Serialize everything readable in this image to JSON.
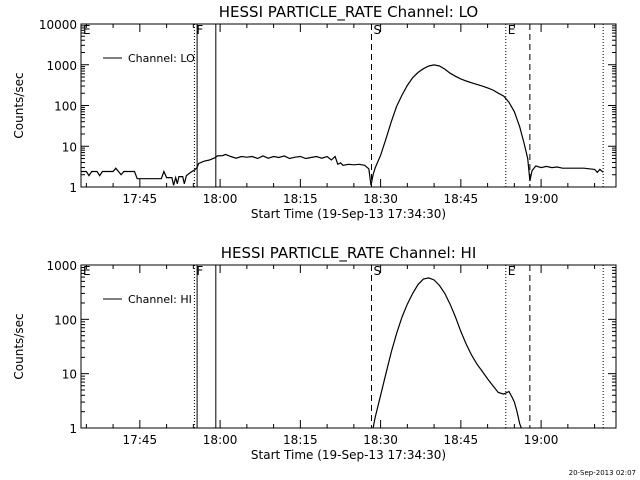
{
  "footer": {
    "timestamp": "20-Sep-2013 02:07"
  },
  "chart_data": [
    {
      "type": "line",
      "title": "HESSI PARTICLE_RATE Channel: LO",
      "xlabel": "Start Time (19-Sep-13 17:34:30)",
      "ylabel": "Counts/sec",
      "y_scale": "log",
      "x_unit": "minutes of day",
      "xlim": [
        1054,
        1154
      ],
      "ylim": [
        1,
        10000
      ],
      "x_ticks": [
        {
          "v": 1065,
          "label": "17:45"
        },
        {
          "v": 1080,
          "label": "18:00"
        },
        {
          "v": 1095,
          "label": "18:15"
        },
        {
          "v": 1110,
          "label": "18:30"
        },
        {
          "v": 1125,
          "label": "18:45"
        },
        {
          "v": 1140,
          "label": "19:00"
        }
      ],
      "y_ticks": [
        {
          "v": 1,
          "label": "1"
        },
        {
          "v": 10,
          "label": "10"
        },
        {
          "v": 100,
          "label": "100"
        },
        {
          "v": 1000,
          "label": "1000"
        },
        {
          "v": 10000,
          "label": "10000"
        }
      ],
      "legend": {
        "entry": "Channel: LO",
        "position": "top-left"
      },
      "markers": [
        {
          "label": "E",
          "x": 1054,
          "style": "dotted"
        },
        {
          "label": "F",
          "x": 1075.2,
          "style": "dotted"
        },
        {
          "label": "",
          "x": 1075.7,
          "style": "solid"
        },
        {
          "label": "",
          "x": 1079.2,
          "style": "solid"
        },
        {
          "label": "S",
          "x": 1108.3,
          "style": "dashed"
        },
        {
          "label": "E",
          "x": 1133.4,
          "style": "dotted"
        },
        {
          "label": "",
          "x": 1137.9,
          "style": "dashed"
        },
        {
          "label": "",
          "x": 1151.6,
          "style": "dotted"
        }
      ],
      "series": [
        {
          "name": "Channel: LO",
          "points": [
            [
              1054,
              2.4
            ],
            [
              1055,
              2.4
            ],
            [
              1055.5,
              1.9
            ],
            [
              1056,
              2.4
            ],
            [
              1057,
              2.4
            ],
            [
              1057.5,
              1.9
            ],
            [
              1058,
              2.4
            ],
            [
              1060,
              2.4
            ],
            [
              1060.5,
              2.9
            ],
            [
              1061,
              2.4
            ],
            [
              1061.5,
              2.0
            ],
            [
              1062,
              2.4
            ],
            [
              1063,
              2.4
            ],
            [
              1064,
              2.4
            ],
            [
              1064.5,
              1.6
            ],
            [
              1065,
              1.6
            ],
            [
              1068,
              1.6
            ],
            [
              1069,
              1.6
            ],
            [
              1069.5,
              2.4
            ],
            [
              1070,
              1.7
            ],
            [
              1071,
              1.7
            ],
            [
              1071.3,
              1.1
            ],
            [
              1071.7,
              1.7
            ],
            [
              1072,
              1.2
            ],
            [
              1072.3,
              1.8
            ],
            [
              1073,
              1.8
            ],
            [
              1073.3,
              1.2
            ],
            [
              1073.7,
              1.9
            ],
            [
              1074.5,
              2.3
            ],
            [
              1075.2,
              2.6
            ],
            [
              1075.7,
              3.0
            ],
            [
              1076,
              3.8
            ],
            [
              1077,
              4.3
            ],
            [
              1078,
              4.6
            ],
            [
              1079,
              5.2
            ],
            [
              1079.5,
              5.8
            ],
            [
              1080.5,
              5.9
            ],
            [
              1081,
              6.3
            ],
            [
              1082,
              5.6
            ],
            [
              1083,
              5.1
            ],
            [
              1084,
              5.6
            ],
            [
              1085,
              5.4
            ],
            [
              1086,
              5.6
            ],
            [
              1087,
              5.0
            ],
            [
              1088,
              5.8
            ],
            [
              1089,
              5.1
            ],
            [
              1090,
              5.6
            ],
            [
              1091,
              5.3
            ],
            [
              1092,
              5.8
            ],
            [
              1093,
              5.0
            ],
            [
              1094,
              5.4
            ],
            [
              1095,
              5.6
            ],
            [
              1096,
              5.0
            ],
            [
              1097,
              5.3
            ],
            [
              1098,
              5.6
            ],
            [
              1099,
              5.1
            ],
            [
              1100,
              5.6
            ],
            [
              1100.8,
              4.6
            ],
            [
              1101.5,
              5.6
            ],
            [
              1102,
              3.6
            ],
            [
              1102.5,
              3.9
            ],
            [
              1103,
              3.4
            ],
            [
              1104,
              3.6
            ],
            [
              1105,
              3.5
            ],
            [
              1106,
              3.6
            ],
            [
              1107,
              3.4
            ],
            [
              1107.8,
              2.8
            ],
            [
              1108.2,
              1.1
            ],
            [
              1108.6,
              2.0
            ],
            [
              1109,
              3.0
            ],
            [
              1110,
              6.0
            ],
            [
              1111,
              15
            ],
            [
              1112,
              40
            ],
            [
              1113,
              95
            ],
            [
              1114,
              180
            ],
            [
              1115,
              310
            ],
            [
              1116,
              480
            ],
            [
              1117,
              650
            ],
            [
              1118,
              800
            ],
            [
              1119,
              930
            ],
            [
              1120,
              990
            ],
            [
              1121,
              930
            ],
            [
              1122,
              780
            ],
            [
              1123,
              620
            ],
            [
              1124,
              520
            ],
            [
              1125,
              450
            ],
            [
              1126,
              400
            ],
            [
              1127,
              360
            ],
            [
              1128,
              330
            ],
            [
              1129,
              300
            ],
            [
              1130,
              270
            ],
            [
              1131,
              240
            ],
            [
              1132,
              200
            ],
            [
              1133,
              170
            ],
            [
              1134,
              120
            ],
            [
              1135,
              70
            ],
            [
              1136,
              30
            ],
            [
              1136.8,
              12
            ],
            [
              1137.5,
              5
            ],
            [
              1137.9,
              1.4
            ],
            [
              1138.3,
              2.5
            ],
            [
              1139,
              3.3
            ],
            [
              1140,
              3.0
            ],
            [
              1141,
              3.2
            ],
            [
              1142,
              3.0
            ],
            [
              1143,
              3.1
            ],
            [
              1144,
              2.9
            ],
            [
              1146,
              2.9
            ],
            [
              1148,
              2.9
            ],
            [
              1149,
              2.8
            ],
            [
              1150,
              2.7
            ],
            [
              1150.5,
              2.3
            ],
            [
              1151,
              2.7
            ],
            [
              1151.6,
              2.3
            ]
          ]
        }
      ]
    },
    {
      "type": "line",
      "title": "HESSI PARTICLE_RATE Channel: HI",
      "xlabel": "Start Time (19-Sep-13 17:34:30)",
      "ylabel": "Counts/sec",
      "y_scale": "log",
      "x_unit": "minutes of day",
      "xlim": [
        1054,
        1154
      ],
      "ylim": [
        1,
        1000
      ],
      "x_ticks": [
        {
          "v": 1065,
          "label": "17:45"
        },
        {
          "v": 1080,
          "label": "18:00"
        },
        {
          "v": 1095,
          "label": "18:15"
        },
        {
          "v": 1110,
          "label": "18:30"
        },
        {
          "v": 1125,
          "label": "18:45"
        },
        {
          "v": 1140,
          "label": "19:00"
        }
      ],
      "y_ticks": [
        {
          "v": 1,
          "label": "1"
        },
        {
          "v": 10,
          "label": "10"
        },
        {
          "v": 100,
          "label": "100"
        },
        {
          "v": 1000,
          "label": "1000"
        }
      ],
      "legend": {
        "entry": "Channel: HI",
        "position": "top-left"
      },
      "markers": [
        {
          "label": "E",
          "x": 1054,
          "style": "dotted"
        },
        {
          "label": "F",
          "x": 1075.2,
          "style": "dotted"
        },
        {
          "label": "",
          "x": 1075.7,
          "style": "solid"
        },
        {
          "label": "",
          "x": 1079.2,
          "style": "solid"
        },
        {
          "label": "S",
          "x": 1108.3,
          "style": "dashed"
        },
        {
          "label": "E",
          "x": 1133.4,
          "style": "dotted"
        },
        {
          "label": "",
          "x": 1137.9,
          "style": "dashed"
        },
        {
          "label": "",
          "x": 1151.6,
          "style": "dotted"
        }
      ],
      "series": [
        {
          "name": "Channel: HI",
          "points": [
            [
              1108.6,
              1.0
            ],
            [
              1109,
              1.6
            ],
            [
              1110,
              4.0
            ],
            [
              1111,
              10
            ],
            [
              1112,
              25
            ],
            [
              1113,
              55
            ],
            [
              1114,
              110
            ],
            [
              1115,
              190
            ],
            [
              1116,
              300
            ],
            [
              1117,
              440
            ],
            [
              1118,
              550
            ],
            [
              1119,
              580
            ],
            [
              1120,
              530
            ],
            [
              1121,
              420
            ],
            [
              1122,
              300
            ],
            [
              1123,
              190
            ],
            [
              1124,
              110
            ],
            [
              1125,
              60
            ],
            [
              1126,
              35
            ],
            [
              1127,
              22
            ],
            [
              1128,
              15
            ],
            [
              1129,
              11
            ],
            [
              1130,
              8
            ],
            [
              1131,
              6
            ],
            [
              1132,
              4.5
            ],
            [
              1133,
              4.2
            ],
            [
              1134,
              4.7
            ],
            [
              1134.5,
              3.8
            ],
            [
              1135,
              3.0
            ],
            [
              1135.5,
              2.0
            ],
            [
              1136,
              1.2
            ],
            [
              1136.3,
              1.0
            ]
          ]
        }
      ]
    }
  ]
}
